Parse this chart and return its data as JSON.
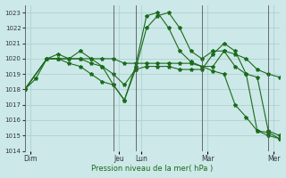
{
  "title": "",
  "xlabel": "Pression niveau de la mer( hPa )",
  "ylim": [
    1014,
    1023.5
  ],
  "yticks": [
    1014,
    1015,
    1016,
    1017,
    1018,
    1019,
    1020,
    1021,
    1022,
    1023
  ],
  "background_color": "#cce8e8",
  "grid_color": "#aacccc",
  "line_color": "#1a6b1a",
  "day_labels": [
    "Dim",
    "Jeu",
    "Lun",
    "Mar",
    "Mer"
  ],
  "day_positions": [
    0.5,
    8.5,
    10.5,
    16.5,
    22.5
  ],
  "vline_positions": [
    0,
    8,
    10,
    16,
    22
  ],
  "series": [
    {
      "x": [
        0,
        1,
        2,
        3,
        4,
        5,
        6,
        7,
        8,
        9,
        10,
        11,
        12,
        13,
        14,
        15,
        16,
        17,
        18,
        19,
        20,
        21,
        22,
        23
      ],
      "y": [
        1018.0,
        1018.7,
        1020.0,
        1020.0,
        1020.0,
        1020.0,
        1020.0,
        1020.0,
        1020.0,
        1019.7,
        1019.7,
        1019.7,
        1019.7,
        1019.7,
        1019.7,
        1019.7,
        1019.5,
        1019.2,
        1019.0,
        1017.0,
        1016.2,
        1015.3,
        1015.2,
        1014.8
      ]
    },
    {
      "x": [
        0,
        2,
        3,
        4,
        5,
        6,
        7,
        8,
        9,
        10,
        11,
        12,
        13,
        14,
        15,
        16,
        17,
        18,
        19,
        20,
        21,
        22,
        23
      ],
      "y": [
        1018.0,
        1020.0,
        1020.3,
        1020.0,
        1020.5,
        1020.0,
        1019.5,
        1019.0,
        1018.3,
        1019.3,
        1022.0,
        1022.8,
        1023.0,
        1022.0,
        1020.5,
        1020.0,
        1020.5,
        1020.5,
        1020.3,
        1020.0,
        1019.3,
        1019.0,
        1018.8
      ]
    },
    {
      "x": [
        0,
        2,
        3,
        4,
        5,
        6,
        7,
        8,
        9,
        10,
        11,
        12,
        13,
        14,
        15,
        16,
        17,
        18,
        19,
        20,
        21,
        22,
        23
      ],
      "y": [
        1018.0,
        1020.0,
        1020.0,
        1019.7,
        1019.5,
        1019.0,
        1018.5,
        1018.3,
        1017.3,
        1019.3,
        1019.5,
        1019.5,
        1019.5,
        1019.3,
        1019.3,
        1019.3,
        1020.3,
        1021.0,
        1020.5,
        1019.0,
        1018.8,
        1015.3,
        1015.0
      ]
    },
    {
      "x": [
        0,
        2,
        3,
        5,
        6,
        7,
        8,
        9,
        10,
        11,
        12,
        13,
        14,
        15,
        16,
        17,
        18,
        19,
        20,
        21,
        22,
        23
      ],
      "y": [
        1018.0,
        1020.0,
        1020.0,
        1020.0,
        1019.7,
        1019.5,
        1018.3,
        1017.3,
        1019.5,
        1022.8,
        1023.0,
        1022.0,
        1020.5,
        1019.8,
        1019.5,
        1019.5,
        1020.5,
        1019.5,
        1019.0,
        1015.3,
        1015.0,
        1014.8
      ]
    }
  ],
  "xlim": [
    0,
    23
  ]
}
